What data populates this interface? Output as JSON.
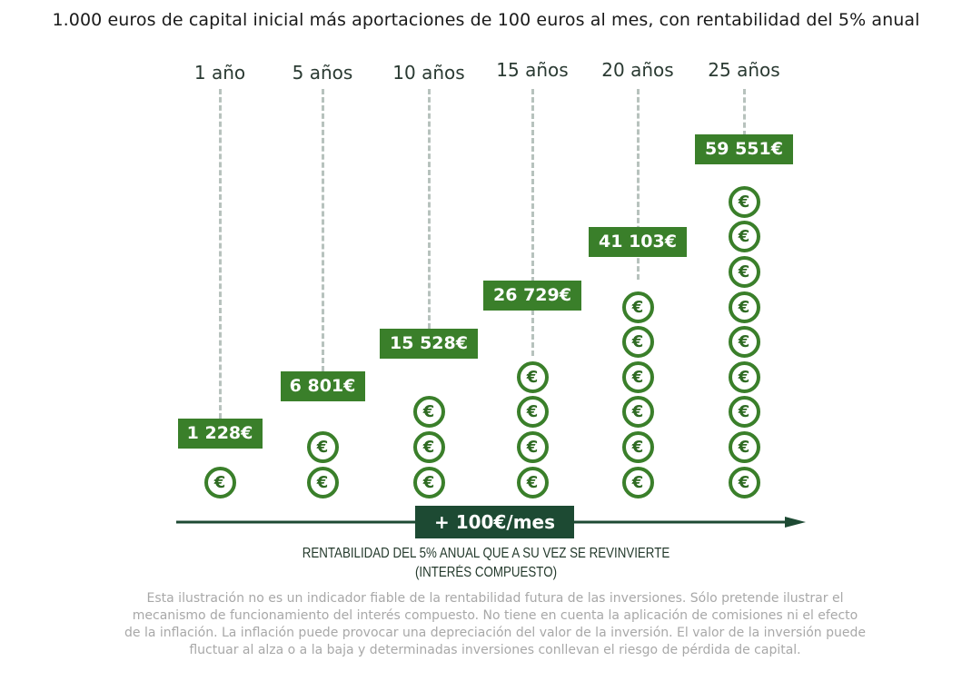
{
  "title": "1.000 euros de capital inicial más aportaciones de 100 euros al mes, con rentabilidad del 5% anual",
  "columns": [
    {
      "year_label": "1 año",
      "value_label": "1 228€",
      "coins": 1
    },
    {
      "year_label": "5 años",
      "value_label": "6 801€",
      "coins": 2
    },
    {
      "year_label": "10 años",
      "value_label": "15 528€",
      "coins": 3
    },
    {
      "year_label": "15 años",
      "value_label": "26 729€",
      "coins": 4
    },
    {
      "year_label": "20 años",
      "value_label": "41 103€",
      "coins": 6
    },
    {
      "year_label": "25 años",
      "value_label": "59 551€",
      "coins": 9
    }
  ],
  "coin_symbol": "€",
  "contribution_label": "+ 100€/mes",
  "caption_line1": "RENTABILIDAD DEL 5% ANUAL QUE A SU VEZ SE REVINVIERTE",
  "caption_line2": "(INTERÉS COMPUESTO)",
  "disclaimer": "Esta ilustración no es un indicador fiable de la rentabilidad futura de las inversiones. Sólo pretende ilustrar el mecanismo de funcionamiento del interés compuesto. No tiene en cuenta la aplicación de comisiones ni el efecto de la inflación. La inflación puede provocar una depreciación del valor de la inversión. El valor de la inversión puede fluctuar al alza o a la baja y determinadas inversiones conllevan el riesgo de pérdida de capital.",
  "colors": {
    "label_green": "#3a7f2a",
    "dark_green": "#1d4a33",
    "dash_gray": "#b7c2bd",
    "disclaimer_gray": "#a8a8a8"
  }
}
